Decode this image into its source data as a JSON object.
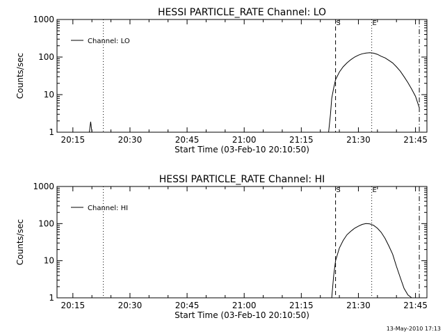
{
  "footer": {
    "timestamp": "13-May-2010 17:13"
  },
  "chart_data": [
    {
      "type": "line",
      "title": "HESSI PARTICLE_RATE Channel: LO",
      "xlabel": "Start Time (03-Feb-10 20:10:50)",
      "ylabel": "Counts/sec",
      "y_scale": "log",
      "ylim": [
        1,
        1000
      ],
      "xlim": [
        "20:10:50",
        "21:48:00"
      ],
      "x_ticks": [
        "20:15",
        "20:30",
        "20:45",
        "21:00",
        "21:15",
        "21:30",
        "21:45"
      ],
      "y_ticks": [
        "1",
        "10",
        "100",
        "1000"
      ],
      "legend": {
        "position": "top-left",
        "entries": [
          "Channel: LO"
        ]
      },
      "markers": [
        {
          "label": "",
          "time": "20:23:00",
          "style": "dotted"
        },
        {
          "label": "S",
          "time": "21:24:00",
          "style": "dashed"
        },
        {
          "label": "E",
          "time": "21:33:30",
          "style": "dotted"
        },
        {
          "label": "",
          "time": "21:46:00",
          "style": "dash-dot"
        }
      ],
      "series": [
        {
          "name": "Channel: LO",
          "segments": [
            {
              "x": [
                "20:19:20",
                "20:19:40",
                "20:20:00"
              ],
              "y": [
                1,
                1.9,
                1
              ]
            },
            {
              "x": [
                "21:22:10",
                "21:22:40",
                "21:23:00",
                "21:23:30",
                "21:24:00",
                "21:25:00",
                "21:26:00",
                "21:27:00",
                "21:28:00",
                "21:29:00",
                "21:30:00",
                "21:31:00",
                "21:32:00",
                "21:33:00",
                "21:34:00",
                "21:35:00",
                "21:36:00",
                "21:37:00",
                "21:38:00",
                "21:39:00",
                "21:40:00",
                "21:41:00",
                "21:42:00",
                "21:43:00",
                "21:44:00",
                "21:45:00",
                "21:46:00"
              ],
              "y": [
                1,
                3,
                8,
                15,
                25,
                40,
                55,
                70,
                85,
                100,
                112,
                122,
                128,
                130,
                127,
                118,
                105,
                95,
                82,
                70,
                55,
                42,
                30,
                21,
                14,
                9,
                4.5
              ]
            }
          ]
        }
      ]
    },
    {
      "type": "line",
      "title": "HESSI PARTICLE_RATE Channel: HI",
      "xlabel": "Start Time (03-Feb-10 20:10:50)",
      "ylabel": "Counts/sec",
      "y_scale": "log",
      "ylim": [
        1,
        1000
      ],
      "xlim": [
        "20:10:50",
        "21:48:00"
      ],
      "x_ticks": [
        "20:15",
        "20:30",
        "20:45",
        "21:00",
        "21:15",
        "21:30",
        "21:45"
      ],
      "y_ticks": [
        "1",
        "10",
        "100",
        "1000"
      ],
      "legend": {
        "position": "top-left",
        "entries": [
          "Channel: HI"
        ]
      },
      "markers": [
        {
          "label": "",
          "time": "20:23:00",
          "style": "dotted"
        },
        {
          "label": "S",
          "time": "21:24:00",
          "style": "dashed"
        },
        {
          "label": "E",
          "time": "21:33:30",
          "style": "dotted"
        },
        {
          "label": "",
          "time": "21:46:00",
          "style": "dash-dot"
        }
      ],
      "series": [
        {
          "name": "Channel: HI",
          "segments": [
            {
              "x": [
                "21:23:00",
                "21:23:30",
                "21:24:00",
                "21:25:00",
                "21:26:00",
                "21:27:00",
                "21:28:00",
                "21:29:00",
                "21:30:00",
                "21:31:00",
                "21:32:00",
                "21:33:00",
                "21:34:00",
                "21:35:00",
                "21:36:00",
                "21:37:00",
                "21:38:00",
                "21:39:00",
                "21:40:00",
                "21:41:00",
                "21:42:00",
                "21:43:00",
                "21:44:00"
              ],
              "y": [
                1,
                4,
                10,
                22,
                35,
                50,
                62,
                75,
                85,
                95,
                100,
                98,
                90,
                75,
                58,
                40,
                25,
                15,
                7,
                3.5,
                1.8,
                1.2,
                1
              ]
            }
          ]
        }
      ]
    }
  ]
}
